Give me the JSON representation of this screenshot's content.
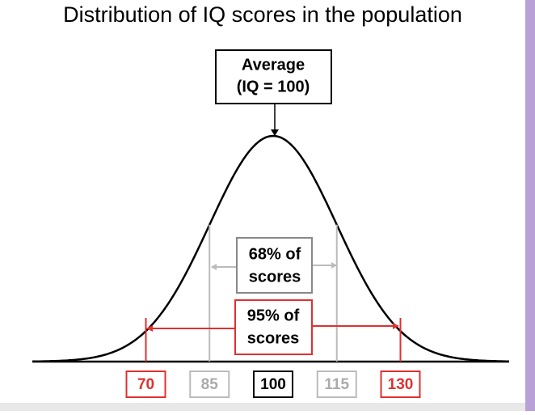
{
  "title": "Distribution of IQ scores in the population",
  "average": {
    "line1": "Average",
    "line2": "(IQ = 100)"
  },
  "range_68": {
    "line1": "68% of",
    "line2": "scores"
  },
  "range_95": {
    "line1": "95% of",
    "line2": "scores"
  },
  "ticks": [
    70,
    85,
    100,
    115,
    130
  ]
}
